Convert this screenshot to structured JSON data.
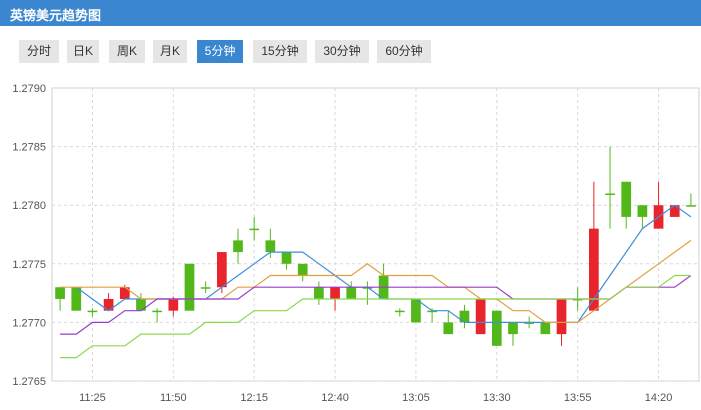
{
  "header": {
    "title": "英镑美元趋势图"
  },
  "tabs": [
    {
      "label": "分时",
      "active": false
    },
    {
      "label": "日K",
      "active": false
    },
    {
      "label": "周K",
      "active": false
    },
    {
      "label": "月K",
      "active": false
    },
    {
      "label": "5分钟",
      "active": true
    },
    {
      "label": "15分钟",
      "active": false
    },
    {
      "label": "30分钟",
      "active": false
    },
    {
      "label": "60分钟",
      "active": false
    }
  ],
  "colors": {
    "accent": "#3a87cf",
    "up": "#e8242c",
    "down": "#52b81a",
    "ma_blue": "#3e8ed8",
    "ma_orange": "#e0a040",
    "ma_purple": "#9b3cc9",
    "ma_green": "#8ed84c"
  },
  "chart_data": {
    "type": "candlestick",
    "ylim": [
      1.2765,
      1.279
    ],
    "y_ticks": [
      "1.2790",
      "1.2785",
      "1.2780",
      "1.2775",
      "1.2770",
      "1.2765"
    ],
    "x_ticks": [
      "11:25",
      "11:50",
      "12:15",
      "12:40",
      "13:05",
      "13:30",
      "13:55",
      "14:20"
    ],
    "x_tick_index": [
      2,
      7,
      12,
      17,
      22,
      27,
      32,
      37
    ],
    "candles": [
      {
        "o": 1.2773,
        "c": 1.2772,
        "h": 1.2773,
        "l": 1.2771
      },
      {
        "o": 1.2773,
        "c": 1.2771,
        "h": 1.2773,
        "l": 1.2771
      },
      {
        "o": 1.2771,
        "c": 1.2771,
        "h": 1.27712,
        "l": 1.27705
      },
      {
        "o": 1.2771,
        "c": 1.2772,
        "h": 1.27725,
        "l": 1.2771
      },
      {
        "o": 1.2772,
        "c": 1.2773,
        "h": 1.27732,
        "l": 1.2772
      },
      {
        "o": 1.2772,
        "c": 1.2771,
        "h": 1.27725,
        "l": 1.2771
      },
      {
        "o": 1.2771,
        "c": 1.2771,
        "h": 1.27712,
        "l": 1.277
      },
      {
        "o": 1.2771,
        "c": 1.2772,
        "h": 1.27722,
        "l": 1.27705
      },
      {
        "o": 1.2775,
        "c": 1.2771,
        "h": 1.2775,
        "l": 1.2771
      },
      {
        "o": 1.2773,
        "c": 1.2773,
        "h": 1.27735,
        "l": 1.27725
      },
      {
        "o": 1.2773,
        "c": 1.2776,
        "h": 1.2776,
        "l": 1.27725
      },
      {
        "o": 1.2777,
        "c": 1.2776,
        "h": 1.2778,
        "l": 1.2775
      },
      {
        "o": 1.2778,
        "c": 1.2778,
        "h": 1.2779,
        "l": 1.2777
      },
      {
        "o": 1.2777,
        "c": 1.2776,
        "h": 1.2778,
        "l": 1.27755
      },
      {
        "o": 1.2776,
        "c": 1.2775,
        "h": 1.2776,
        "l": 1.27745
      },
      {
        "o": 1.2775,
        "c": 1.2774,
        "h": 1.2775,
        "l": 1.27735
      },
      {
        "o": 1.2773,
        "c": 1.2772,
        "h": 1.27735,
        "l": 1.27715
      },
      {
        "o": 1.2772,
        "c": 1.2773,
        "h": 1.2773,
        "l": 1.2771
      },
      {
        "o": 1.2773,
        "c": 1.2772,
        "h": 1.27735,
        "l": 1.2772
      },
      {
        "o": 1.2773,
        "c": 1.2773,
        "h": 1.27735,
        "l": 1.27715
      },
      {
        "o": 1.2774,
        "c": 1.2772,
        "h": 1.2775,
        "l": 1.2772
      },
      {
        "o": 1.2771,
        "c": 1.2771,
        "h": 1.27712,
        "l": 1.27705
      },
      {
        "o": 1.2772,
        "c": 1.277,
        "h": 1.2772,
        "l": 1.277
      },
      {
        "o": 1.2771,
        "c": 1.2771,
        "h": 1.27712,
        "l": 1.277
      },
      {
        "o": 1.277,
        "c": 1.2769,
        "h": 1.2771,
        "l": 1.2769
      },
      {
        "o": 1.2771,
        "c": 1.277,
        "h": 1.27715,
        "l": 1.27695
      },
      {
        "o": 1.2769,
        "c": 1.2772,
        "h": 1.2772,
        "l": 1.2769
      },
      {
        "o": 1.2771,
        "c": 1.2768,
        "h": 1.2771,
        "l": 1.2768
      },
      {
        "o": 1.277,
        "c": 1.2769,
        "h": 1.277,
        "l": 1.2768
      },
      {
        "o": 1.277,
        "c": 1.277,
        "h": 1.27705,
        "l": 1.27695
      },
      {
        "o": 1.277,
        "c": 1.2769,
        "h": 1.277,
        "l": 1.2769
      },
      {
        "o": 1.2769,
        "c": 1.2772,
        "h": 1.2772,
        "l": 1.2768
      },
      {
        "o": 1.2772,
        "c": 1.2772,
        "h": 1.2773,
        "l": 1.2771
      },
      {
        "o": 1.2771,
        "c": 1.2778,
        "h": 1.2782,
        "l": 1.2771
      },
      {
        "o": 1.2781,
        "c": 1.2781,
        "h": 1.2785,
        "l": 1.2778
      },
      {
        "o": 1.2782,
        "c": 1.2779,
        "h": 1.2782,
        "l": 1.2778
      },
      {
        "o": 1.278,
        "c": 1.2779,
        "h": 1.278,
        "l": 1.2778
      },
      {
        "o": 1.2778,
        "c": 1.278,
        "h": 1.2782,
        "l": 1.2778
      },
      {
        "o": 1.2779,
        "c": 1.278,
        "h": 1.278,
        "l": 1.2779
      },
      {
        "o": 1.278,
        "c": 1.278,
        "h": 1.2781,
        "l": 1.278
      }
    ],
    "ma_lines": [
      {
        "color": "#3e8ed8",
        "values": [
          null,
          1.2773,
          1.2772,
          1.2771,
          1.2772,
          1.2772,
          1.2772,
          1.2772,
          1.2772,
          1.2772,
          1.2773,
          1.2774,
          1.2775,
          1.2776,
          1.2776,
          1.2776,
          1.2775,
          1.2774,
          1.2773,
          1.2773,
          1.2772,
          1.2772,
          1.2772,
          1.2771,
          1.2771,
          1.277,
          1.277,
          1.277,
          1.277,
          1.277,
          1.277,
          1.277,
          1.277,
          1.2772,
          1.2774,
          1.2776,
          1.2778,
          1.2779,
          1.278,
          1.2779
        ]
      },
      {
        "color": "#e0a040",
        "values": [
          1.2773,
          1.2773,
          1.2773,
          1.2773,
          1.2773,
          1.2772,
          1.2772,
          1.2772,
          1.2772,
          1.2772,
          1.2772,
          1.2773,
          1.2773,
          1.2774,
          1.2774,
          1.2774,
          1.2774,
          1.2774,
          1.2774,
          1.2775,
          1.2774,
          1.2774,
          1.2774,
          1.2774,
          1.2773,
          1.2773,
          1.2772,
          1.2772,
          1.2771,
          1.2771,
          1.277,
          1.277,
          1.277,
          1.2771,
          1.2772,
          1.2773,
          1.2774,
          1.2775,
          1.2776,
          1.2777
        ]
      },
      {
        "color": "#9b3cc9",
        "values": [
          1.2769,
          1.2769,
          1.277,
          1.277,
          1.2771,
          1.2771,
          1.2772,
          1.2772,
          1.2772,
          1.2772,
          1.2772,
          1.2772,
          1.2773,
          1.2773,
          1.2773,
          1.2773,
          1.2773,
          1.2773,
          1.2773,
          1.2773,
          1.2773,
          1.2773,
          1.2773,
          1.2773,
          1.2773,
          1.2773,
          1.2773,
          1.2773,
          1.2772,
          1.2772,
          1.2772,
          1.2772,
          1.2772,
          1.2772,
          1.2772,
          1.2773,
          1.2773,
          1.2773,
          1.2773,
          1.2774
        ]
      },
      {
        "color": "#8ed84c",
        "values": [
          1.2767,
          1.2767,
          1.2768,
          1.2768,
          1.2768,
          1.2769,
          1.2769,
          1.2769,
          1.2769,
          1.277,
          1.277,
          1.277,
          1.2771,
          1.2771,
          1.2771,
          1.2772,
          1.2772,
          1.2772,
          1.2772,
          1.2772,
          1.2772,
          1.2772,
          1.2772,
          1.2772,
          1.2772,
          1.2772,
          1.2772,
          1.2772,
          1.2772,
          1.2772,
          1.2772,
          1.2772,
          1.2772,
          1.2772,
          1.2772,
          1.2773,
          1.2773,
          1.2773,
          1.2774,
          1.2774
        ]
      }
    ]
  }
}
